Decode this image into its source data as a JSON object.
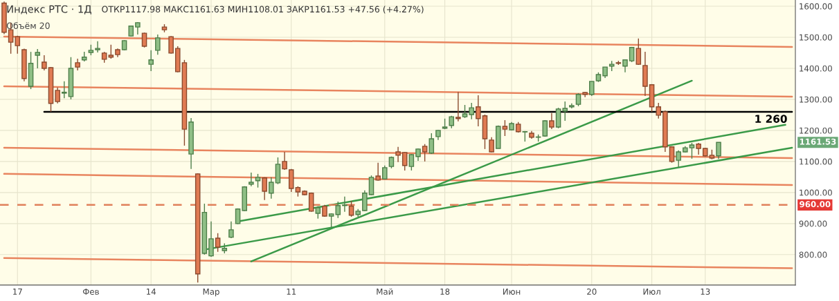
{
  "chart_data": {
    "type": "candlestick",
    "title": "Индекс РТС · 1Д",
    "subtitle": "ОТКР1117.98 МАКС1161.63 МИН1108.01 ЗАКР1161.53 +47.56 (+4.27%)",
    "annotations": [
      "Объём 20",
      {
        "text": "1 260",
        "y": 1260
      },
      "1161.53"
    ],
    "categories": [
      null,
      null,
      "17",
      null,
      null,
      null,
      null,
      null,
      null,
      null,
      null,
      null,
      null,
      "Фев",
      null,
      null,
      null,
      null,
      null,
      null,
      null,
      null,
      "14",
      null,
      null,
      null,
      null,
      null,
      null,
      null,
      null,
      "Мар",
      null,
      null,
      null,
      null,
      null,
      null,
      null,
      null,
      null,
      null,
      null,
      "11",
      null,
      null,
      null,
      null,
      null,
      null,
      null,
      null,
      null,
      null,
      null,
      null,
      null,
      "Май",
      null,
      null,
      null,
      null,
      null,
      null,
      null,
      null,
      "18",
      null,
      null,
      null,
      null,
      null,
      null,
      null,
      null,
      null,
      "Июн",
      null,
      null,
      null,
      null,
      null,
      null,
      null,
      null,
      null,
      null,
      null,
      "20",
      null,
      null,
      null,
      null,
      null,
      null,
      null,
      null,
      "Июл",
      null,
      null,
      null,
      null,
      null,
      null,
      null,
      "13",
      null,
      null,
      null,
      null,
      null,
      null,
      null,
      null,
      null,
      null,
      null,
      null,
      null
    ],
    "ohlc": [
      [
        1610,
        1615,
        1510,
        1516
      ],
      [
        1524,
        1547,
        1447,
        1484
      ],
      [
        1502,
        1505,
        1447,
        1473
      ],
      [
        1460,
        1463,
        1358,
        1367
      ],
      [
        1342,
        1453,
        1333,
        1416
      ],
      [
        1442,
        1462,
        1400,
        1451
      ],
      [
        1420,
        1442,
        1393,
        1400
      ],
      [
        1402,
        1404,
        1260,
        1287
      ],
      [
        1329,
        1338,
        1287,
        1293
      ],
      [
        1320,
        1358,
        1304,
        1323
      ],
      [
        1309,
        1436,
        1300,
        1400
      ],
      [
        1418,
        1431,
        1393,
        1404
      ],
      [
        1427,
        1453,
        1422,
        1436
      ],
      [
        1451,
        1476,
        1442,
        1458
      ],
      [
        1460,
        1487,
        1451,
        1464
      ],
      [
        1449,
        1453,
        1418,
        1429
      ],
      [
        1442,
        1476,
        1431,
        1436
      ],
      [
        1460,
        1464,
        1436,
        1444
      ],
      [
        1460,
        1491,
        1458,
        1489
      ],
      [
        1504,
        1538,
        1502,
        1536
      ],
      [
        1533,
        1549,
        1509,
        1547
      ],
      [
        1513,
        1515,
        1467,
        1471
      ],
      [
        1413,
        1458,
        1391,
        1427
      ],
      [
        1458,
        1509,
        1444,
        1498
      ],
      [
        1533,
        1542,
        1516,
        1524
      ],
      [
        1502,
        1504,
        1447,
        1449
      ],
      [
        1464,
        1471,
        1387,
        1389
      ],
      [
        1418,
        1427,
        1151,
        1204
      ],
      [
        1124,
        1240,
        1076,
        1227
      ],
      [
        1060,
        1062,
        710,
        738
      ],
      [
        804,
        964,
        800,
        936
      ],
      [
        796,
        907,
        793,
        851
      ],
      [
        853,
        869,
        809,
        824
      ],
      [
        813,
        836,
        804,
        820
      ],
      [
        856,
        907,
        853,
        880
      ],
      [
        900,
        949,
        898,
        947
      ],
      [
        942,
        1020,
        940,
        1018
      ],
      [
        1027,
        1064,
        1020,
        1033
      ],
      [
        1038,
        1060,
        1016,
        1049
      ],
      [
        1047,
        1049,
        976,
        1004
      ],
      [
        998,
        1049,
        980,
        1033
      ],
      [
        1031,
        1113,
        1027,
        1091
      ],
      [
        1100,
        1131,
        1073,
        1076
      ],
      [
        1073,
        1076,
        1002,
        1013
      ],
      [
        1016,
        1020,
        987,
        1002
      ],
      [
        1004,
        1007,
        991,
        993
      ],
      [
        998,
        1000,
        938,
        940
      ],
      [
        933,
        956,
        916,
        951
      ],
      [
        956,
        960,
        922,
        924
      ],
      [
        924,
        933,
        887,
        931
      ],
      [
        929,
        971,
        918,
        958
      ],
      [
        958,
        987,
        938,
        960
      ],
      [
        956,
        973,
        922,
        927
      ],
      [
        929,
        947,
        922,
        940
      ],
      [
        942,
        1007,
        940,
        998
      ],
      [
        993,
        1055,
        991,
        1049
      ],
      [
        1053,
        1096,
        1038,
        1040
      ],
      [
        1044,
        1087,
        1042,
        1080
      ],
      [
        1084,
        1116,
        1078,
        1113
      ],
      [
        1131,
        1147,
        1098,
        1120
      ],
      [
        1129,
        1131,
        1071,
        1087
      ],
      [
        1084,
        1124,
        1071,
        1122
      ],
      [
        1116,
        1142,
        1102,
        1140
      ],
      [
        1149,
        1156,
        1100,
        1131
      ],
      [
        1127,
        1191,
        1124,
        1173
      ],
      [
        1180,
        1202,
        1169,
        1200
      ],
      [
        1207,
        1238,
        1204,
        1211
      ],
      [
        1216,
        1247,
        1207,
        1244
      ],
      [
        1242,
        1324,
        1229,
        1238
      ],
      [
        1244,
        1282,
        1240,
        1253
      ],
      [
        1251,
        1289,
        1236,
        1273
      ],
      [
        1276,
        1313,
        1213,
        1238
      ],
      [
        1247,
        1251,
        1140,
        1173
      ],
      [
        1169,
        1178,
        1129,
        1131
      ],
      [
        1142,
        1216,
        1142,
        1213
      ],
      [
        1213,
        1233,
        1182,
        1204
      ],
      [
        1202,
        1227,
        1200,
        1222
      ],
      [
        1220,
        1227,
        1193,
        1196
      ],
      [
        1195,
        1198,
        1164,
        1196
      ],
      [
        1191,
        1198,
        1173,
        1178
      ],
      [
        1178,
        1187,
        1164,
        1179
      ],
      [
        1182,
        1233,
        1180,
        1231
      ],
      [
        1231,
        1256,
        1204,
        1211
      ],
      [
        1211,
        1273,
        1207,
        1269
      ],
      [
        1262,
        1293,
        1231,
        1271
      ],
      [
        1276,
        1287,
        1271,
        1280
      ],
      [
        1284,
        1320,
        1278,
        1316
      ],
      [
        1322,
        1324,
        1307,
        1316
      ],
      [
        1316,
        1358,
        1311,
        1358
      ],
      [
        1360,
        1387,
        1356,
        1380
      ],
      [
        1376,
        1404,
        1369,
        1404
      ],
      [
        1407,
        1424,
        1391,
        1413
      ],
      [
        1418,
        1424,
        1411,
        1416
      ],
      [
        1407,
        1429,
        1387,
        1427
      ],
      [
        1424,
        1469,
        1420,
        1467
      ],
      [
        1464,
        1496,
        1411,
        1413
      ],
      [
        1409,
        1453,
        1311,
        1342
      ],
      [
        1347,
        1349,
        1260,
        1276
      ],
      [
        1276,
        1289,
        1238,
        1249
      ],
      [
        1260,
        1264,
        1131,
        1147
      ],
      [
        1147,
        1149,
        1096,
        1100
      ],
      [
        1104,
        1136,
        1082,
        1131
      ],
      [
        1131,
        1149,
        1129,
        1144
      ],
      [
        1144,
        1160,
        1109,
        1153
      ],
      [
        1156,
        1160,
        1122,
        1142
      ],
      [
        1142,
        1144,
        1116,
        1118
      ],
      [
        1120,
        1138,
        1107,
        1111
      ],
      [
        1117.98,
        1161.63,
        1108.01,
        1161.53
      ],
      null,
      null,
      null,
      null,
      null,
      null,
      null,
      null,
      null,
      null,
      null
    ],
    "series": [
      {
        "type": "line",
        "color": "#e8845e",
        "values": [
          1502,
          null,
          null,
          null,
          null,
          null,
          null,
          null,
          null,
          null,
          null,
          null,
          null,
          null,
          null,
          null,
          null,
          null,
          null,
          null,
          null,
          null,
          null,
          null,
          null,
          null,
          null,
          null,
          null,
          null,
          null,
          null,
          null,
          null,
          null,
          null,
          null,
          null,
          null,
          null,
          null,
          null,
          null,
          null,
          null,
          null,
          null,
          null,
          null,
          null,
          null,
          null,
          null,
          null,
          null,
          null,
          null,
          null,
          null,
          null,
          null,
          null,
          null,
          null,
          null,
          null,
          null,
          null,
          null,
          null,
          null,
          null,
          null,
          null,
          null,
          null,
          null,
          null,
          null,
          null,
          null,
          null,
          null,
          null,
          null,
          null,
          null,
          null,
          null,
          null,
          null,
          null,
          null,
          null,
          null,
          null,
          null,
          null,
          null,
          null,
          null,
          null,
          null,
          null,
          null,
          null,
          null,
          null,
          null,
          null,
          null,
          null,
          null,
          null,
          null,
          null,
          null,
          null,
          1469
        ]
      },
      {
        "type": "line",
        "color": "#e8845e",
        "values": [
          1342,
          null,
          null,
          null,
          null,
          null,
          null,
          null,
          null,
          null,
          null,
          null,
          null,
          null,
          null,
          null,
          null,
          null,
          null,
          null,
          null,
          null,
          null,
          null,
          null,
          null,
          null,
          null,
          null,
          null,
          null,
          null,
          null,
          null,
          null,
          null,
          null,
          null,
          null,
          null,
          null,
          null,
          null,
          null,
          null,
          null,
          null,
          null,
          null,
          null,
          null,
          null,
          null,
          null,
          null,
          null,
          null,
          null,
          null,
          null,
          null,
          null,
          null,
          null,
          null,
          null,
          null,
          null,
          null,
          null,
          null,
          null,
          null,
          null,
          null,
          null,
          null,
          null,
          null,
          null,
          null,
          null,
          null,
          null,
          null,
          null,
          null,
          null,
          null,
          null,
          null,
          null,
          null,
          null,
          null,
          null,
          null,
          null,
          null,
          null,
          null,
          null,
          null,
          null,
          null,
          null,
          null,
          null,
          null,
          null,
          null,
          null,
          null,
          null,
          null,
          null,
          null,
          null,
          1309
        ]
      },
      {
        "type": "line",
        "color": "#e8845e",
        "values": [
          1144,
          null,
          null,
          null,
          null,
          null,
          null,
          null,
          null,
          null,
          null,
          null,
          null,
          null,
          null,
          null,
          null,
          null,
          null,
          null,
          null,
          null,
          null,
          null,
          null,
          null,
          null,
          null,
          null,
          null,
          null,
          null,
          null,
          null,
          null,
          null,
          null,
          null,
          null,
          null,
          null,
          null,
          null,
          null,
          null,
          null,
          null,
          null,
          null,
          null,
          null,
          null,
          null,
          null,
          null,
          null,
          null,
          null,
          null,
          null,
          null,
          null,
          null,
          null,
          null,
          null,
          null,
          null,
          null,
          null,
          null,
          null,
          null,
          null,
          null,
          null,
          null,
          null,
          null,
          null,
          null,
          null,
          null,
          null,
          null,
          null,
          null,
          null,
          null,
          null,
          null,
          null,
          null,
          null,
          null,
          null,
          null,
          null,
          null,
          null,
          null,
          null,
          null,
          null,
          null,
          null,
          null,
          null,
          null,
          null,
          null,
          null,
          null,
          null,
          null,
          null,
          null,
          null,
          1111
        ]
      },
      {
        "type": "line",
        "color": "#e8845e",
        "values": [
          1060,
          null,
          null,
          null,
          null,
          null,
          null,
          null,
          null,
          null,
          null,
          null,
          null,
          null,
          null,
          null,
          null,
          null,
          null,
          null,
          null,
          null,
          null,
          null,
          null,
          null,
          null,
          null,
          null,
          null,
          null,
          null,
          null,
          null,
          null,
          null,
          null,
          null,
          null,
          null,
          null,
          null,
          null,
          null,
          null,
          null,
          null,
          null,
          null,
          null,
          null,
          null,
          null,
          null,
          null,
          null,
          null,
          null,
          null,
          null,
          null,
          null,
          null,
          null,
          null,
          null,
          null,
          null,
          null,
          null,
          null,
          null,
          null,
          null,
          null,
          null,
          null,
          null,
          null,
          null,
          null,
          null,
          null,
          null,
          null,
          null,
          null,
          null,
          null,
          null,
          null,
          null,
          null,
          null,
          null,
          null,
          null,
          null,
          null,
          null,
          null,
          null,
          null,
          null,
          null,
          null,
          null,
          null,
          null,
          null,
          null,
          null,
          null,
          null,
          null,
          null,
          null,
          null,
          1024
        ]
      },
      {
        "type": "line",
        "color": "#e8845e",
        "values": [
          789,
          null,
          null,
          null,
          null,
          null,
          null,
          null,
          null,
          null,
          null,
          null,
          null,
          null,
          null,
          null,
          null,
          null,
          null,
          null,
          null,
          null,
          null,
          null,
          null,
          null,
          null,
          null,
          null,
          null,
          null,
          null,
          null,
          null,
          null,
          null,
          null,
          null,
          null,
          null,
          null,
          null,
          null,
          null,
          null,
          null,
          null,
          null,
          null,
          null,
          null,
          null,
          null,
          null,
          null,
          null,
          null,
          null,
          null,
          null,
          null,
          null,
          null,
          null,
          null,
          null,
          null,
          null,
          null,
          null,
          null,
          null,
          null,
          null,
          null,
          null,
          null,
          null,
          null,
          null,
          null,
          null,
          null,
          null,
          null,
          null,
          null,
          null,
          null,
          null,
          null,
          null,
          null,
          null,
          null,
          null,
          null,
          null,
          null,
          null,
          null,
          null,
          null,
          null,
          null,
          null,
          null,
          null,
          null,
          null,
          null,
          null,
          null,
          null,
          null,
          null,
          null,
          null,
          756
        ]
      },
      {
        "type": "line",
        "color": "#3a9a48",
        "values": [
          null,
          null,
          null,
          null,
          null,
          null,
          null,
          null,
          null,
          null,
          null,
          null,
          null,
          null,
          null,
          null,
          null,
          null,
          null,
          null,
          null,
          null,
          null,
          null,
          null,
          null,
          null,
          null,
          null,
          null,
          null,
          null,
          null,
          null,
          null,
          907,
          null,
          null,
          null,
          null,
          null,
          null,
          null,
          null,
          null,
          null,
          null,
          null,
          null,
          null,
          null,
          null,
          null,
          null,
          null,
          null,
          null,
          null,
          null,
          null,
          null,
          null,
          null,
          null,
          null,
          null,
          null,
          null,
          null,
          null,
          null,
          null,
          null,
          null,
          null,
          null,
          null,
          null,
          null,
          null,
          null,
          null,
          null,
          null,
          null,
          null,
          null,
          null,
          null,
          null,
          null,
          null,
          null,
          null,
          null,
          null,
          null,
          null,
          null,
          null,
          null,
          null,
          null,
          null,
          null,
          null,
          null,
          null,
          null,
          null,
          null,
          null,
          null,
          null,
          null,
          null,
          null,
          1218,
          null
        ]
      },
      {
        "type": "line",
        "color": "#3a9a48",
        "values": [
          null,
          null,
          null,
          null,
          null,
          null,
          null,
          null,
          null,
          null,
          null,
          null,
          null,
          null,
          null,
          null,
          null,
          null,
          null,
          null,
          null,
          null,
          null,
          null,
          null,
          null,
          null,
          null,
          null,
          null,
          816,
          null,
          null,
          null,
          null,
          null,
          null,
          null,
          null,
          null,
          null,
          null,
          null,
          null,
          null,
          null,
          null,
          null,
          null,
          null,
          null,
          null,
          null,
          null,
          null,
          null,
          null,
          null,
          null,
          null,
          null,
          null,
          null,
          null,
          null,
          null,
          null,
          null,
          null,
          null,
          null,
          null,
          null,
          null,
          null,
          null,
          null,
          null,
          null,
          null,
          null,
          null,
          null,
          null,
          null,
          null,
          null,
          null,
          null,
          null,
          null,
          null,
          null,
          null,
          null,
          null,
          null,
          null,
          null,
          null,
          null,
          null,
          null,
          null,
          null,
          null,
          null,
          null,
          null,
          null,
          null,
          null,
          null,
          null,
          null,
          null,
          null,
          null,
          1144
        ]
      },
      {
        "type": "line",
        "color": "#3a9a48",
        "values": [
          null,
          null,
          null,
          null,
          null,
          null,
          null,
          null,
          null,
          null,
          null,
          null,
          null,
          null,
          null,
          null,
          null,
          null,
          null,
          null,
          null,
          null,
          null,
          null,
          null,
          null,
          null,
          null,
          null,
          null,
          null,
          null,
          null,
          null,
          null,
          null,
          null,
          778,
          null,
          null,
          null,
          null,
          null,
          null,
          null,
          null,
          null,
          null,
          null,
          null,
          null,
          null,
          null,
          null,
          null,
          null,
          null,
          null,
          null,
          null,
          null,
          null,
          null,
          null,
          null,
          null,
          null,
          null,
          null,
          null,
          null,
          null,
          null,
          null,
          null,
          null,
          null,
          null,
          null,
          null,
          null,
          null,
          null,
          null,
          null,
          null,
          null,
          null,
          null,
          null,
          null,
          null,
          null,
          null,
          null,
          null,
          null,
          null,
          null,
          null,
          null,
          null,
          null,
          1360,
          null,
          null,
          null,
          null,
          null,
          null,
          null,
          null,
          null,
          null,
          null,
          null,
          null,
          null,
          null
        ]
      },
      {
        "type": "line",
        "color": "#000000",
        "values": [
          null,
          null,
          null,
          null,
          null,
          null,
          1260,
          null,
          null,
          null,
          null,
          null,
          null,
          null,
          null,
          null,
          null,
          null,
          null,
          null,
          null,
          null,
          null,
          null,
          null,
          null,
          null,
          null,
          null,
          null,
          null,
          null,
          null,
          null,
          null,
          null,
          null,
          null,
          null,
          null,
          null,
          null,
          null,
          null,
          null,
          null,
          null,
          null,
          null,
          null,
          null,
          null,
          null,
          null,
          null,
          null,
          null,
          null,
          null,
          null,
          null,
          null,
          null,
          null,
          null,
          null,
          null,
          null,
          null,
          null,
          null,
          null,
          null,
          null,
          null,
          null,
          null,
          null,
          null,
          null,
          null,
          null,
          null,
          null,
          null,
          null,
          null,
          null,
          null,
          null,
          null,
          null,
          null,
          null,
          null,
          null,
          null,
          null,
          null,
          null,
          null,
          null,
          null,
          null,
          null,
          null,
          null,
          null,
          null,
          null,
          null,
          null,
          null,
          null,
          null,
          null,
          null,
          null,
          1260
        ]
      }
    ],
    "ref_lines": [
      {
        "axis": "y",
        "value": 960,
        "label": "960.00",
        "color": "#e0805a",
        "line_style": "dashed"
      }
    ],
    "ylim": [
      702,
      1620
    ],
    "yticks": [
      {
        "value": 800,
        "label": "800.00"
      },
      {
        "value": 900,
        "label": "900.00"
      },
      {
        "value": 1000,
        "label": "1000.00"
      },
      {
        "value": 1100,
        "label": "1100.00"
      },
      {
        "value": 1200,
        "label": "1200.00"
      },
      {
        "value": 1300,
        "label": "1300.00"
      },
      {
        "value": 1400,
        "label": "1400.00"
      },
      {
        "value": 1500,
        "label": "1500.00"
      },
      {
        "value": 1600,
        "label": "1600.00"
      }
    ],
    "grid": true
  }
}
